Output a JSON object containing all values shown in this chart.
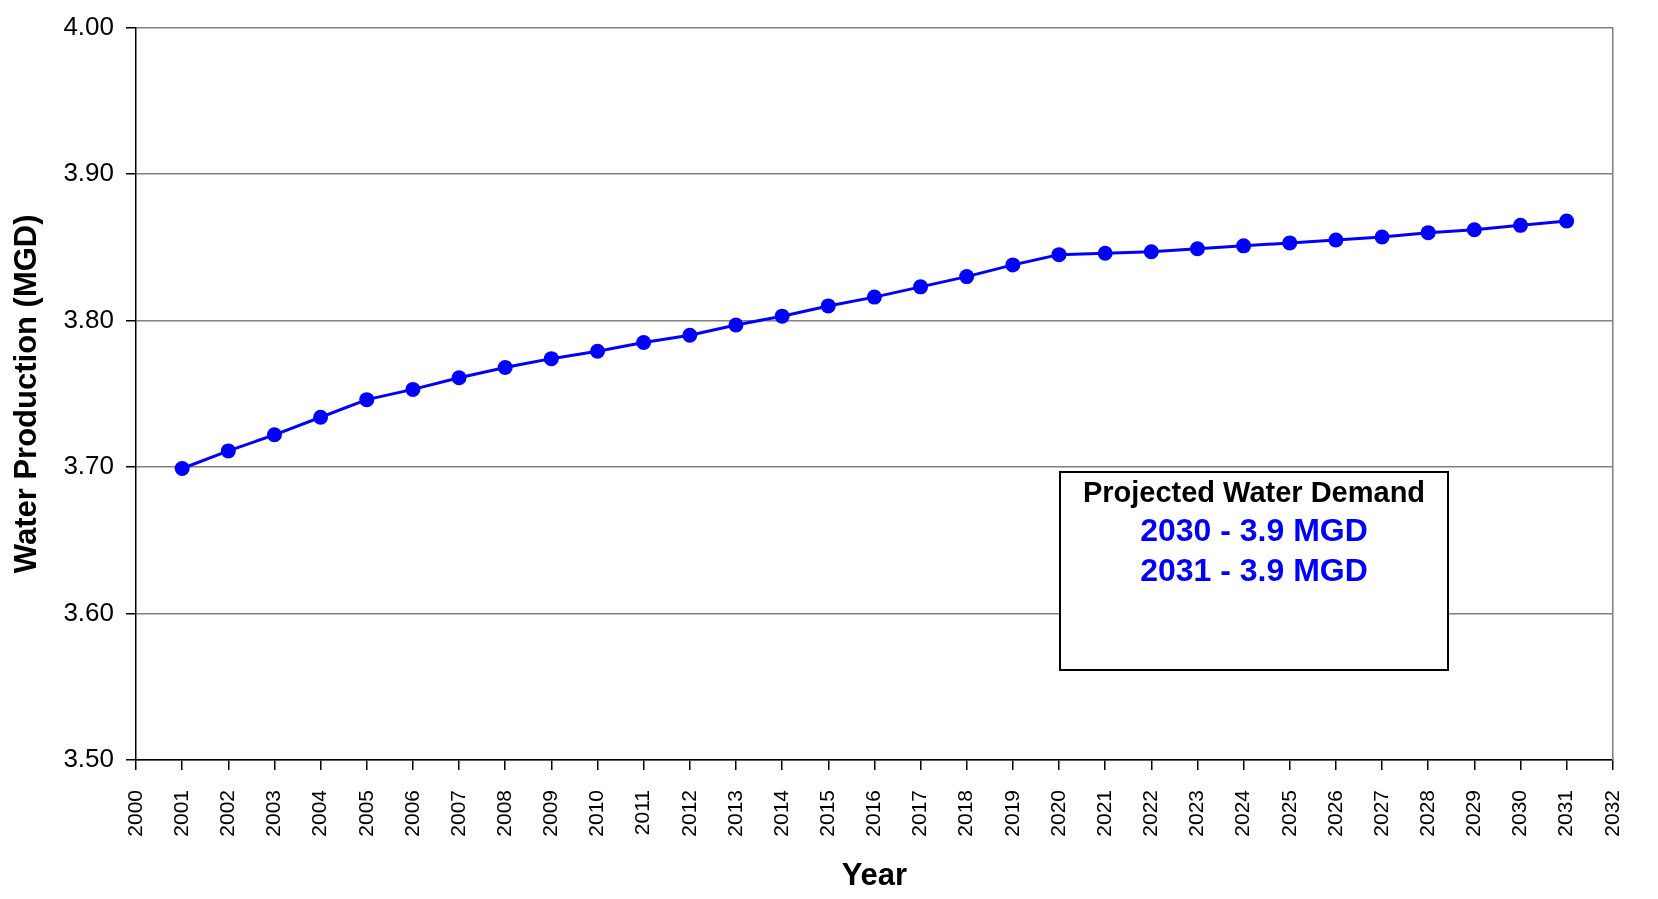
{
  "chart_data": {
    "type": "line",
    "xlabel": "Year",
    "ylabel": "Water Production (MGD)",
    "x": [
      2001,
      2002,
      2003,
      2004,
      2005,
      2006,
      2007,
      2008,
      2009,
      2010,
      2011,
      2012,
      2013,
      2014,
      2015,
      2016,
      2017,
      2018,
      2019,
      2020,
      2021,
      2022,
      2023,
      2024,
      2025,
      2026,
      2027,
      2028,
      2029,
      2030,
      2031
    ],
    "values": [
      3.699,
      3.711,
      3.722,
      3.734,
      3.746,
      3.753,
      3.761,
      3.768,
      3.774,
      3.779,
      3.785,
      3.79,
      3.797,
      3.803,
      3.81,
      3.816,
      3.823,
      3.83,
      3.838,
      3.845,
      3.846,
      3.847,
      3.849,
      3.851,
      3.853,
      3.855,
      3.857,
      3.86,
      3.862,
      3.865,
      3.868
    ],
    "color": "#0000ff",
    "xlim": [
      2000,
      2032
    ],
    "xticks": [
      2000,
      2001,
      2002,
      2003,
      2004,
      2005,
      2006,
      2007,
      2008,
      2009,
      2010,
      2011,
      2012,
      2013,
      2014,
      2015,
      2016,
      2017,
      2018,
      2019,
      2020,
      2021,
      2022,
      2023,
      2024,
      2025,
      2026,
      2027,
      2028,
      2029,
      2030,
      2031,
      2032
    ],
    "ylim": [
      3.5,
      4.0
    ],
    "yticks": [
      {
        "value": 3.5,
        "label": "3.50"
      },
      {
        "value": 3.6,
        "label": "3.60"
      },
      {
        "value": 3.7,
        "label": "3.70"
      },
      {
        "value": 3.8,
        "label": "3.80"
      },
      {
        "value": 3.9,
        "label": "3.90"
      },
      {
        "value": 4.0,
        "label": "4.00"
      }
    ],
    "grid": "y",
    "marker": "circle",
    "line_style": "solid",
    "annotations": [
      "Projected Water Demand",
      "2030 - 3.9 MGD",
      "2031 - 3.9 MGD"
    ]
  }
}
